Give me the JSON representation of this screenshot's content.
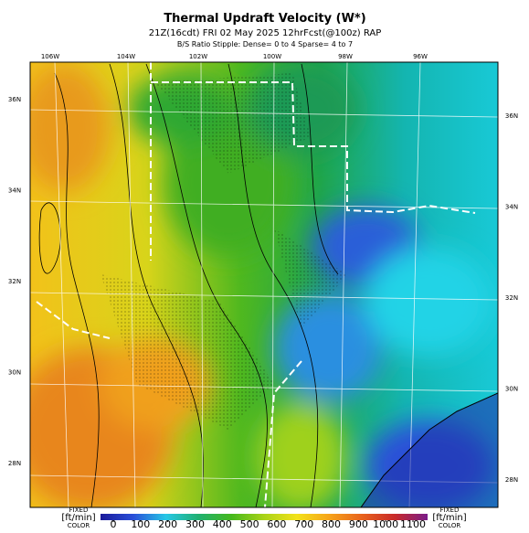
{
  "header": {
    "title": "Thermal Updraft Velocity (W*)",
    "subtitle": "21Z(16cdt) FRI 02 May 2025 12hrFcst(@100z) RAP",
    "note": "B/S Ratio Stipple: Dense= 0 to 4 Sparse= 4 to 7"
  },
  "longitude_labels": [
    "106W",
    "104W",
    "102W",
    "100W",
    "98W",
    "96W"
  ],
  "latitude_labels_left": [
    "36N",
    "34N",
    "32N",
    "30N",
    "28N"
  ],
  "latitude_labels_right": [
    "36N",
    "34N",
    "32N",
    "30N",
    "28N"
  ],
  "colorbar": {
    "left_label": {
      "top": "FIXED",
      "unit": "[ft/min]",
      "bottom": "COLOR"
    },
    "right_label": {
      "top": "FIXED",
      "unit": "[ft/min]",
      "bottom": "COLOR"
    },
    "ticks": [
      0,
      100,
      200,
      300,
      400,
      500,
      600,
      700,
      800,
      900,
      1000,
      1100
    ]
  }
}
